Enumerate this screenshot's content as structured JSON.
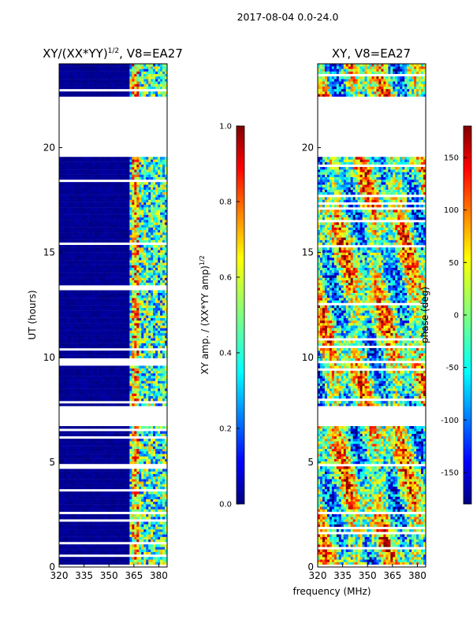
{
  "figure": {
    "suptitle": "2017-08-04 0.0-24.0",
    "xlabel_shared": "frequency (MHz)"
  },
  "chart_data": [
    {
      "type": "heatmap",
      "title": "XY/(XX*YY)",
      "title_exponent": "1/2",
      "title_suffix": ", V8=EA27",
      "xlabel": "frequency (MHz)",
      "ylabel": "UT (hours)",
      "xlim": [
        320,
        385
      ],
      "ylim": [
        0,
        24
      ],
      "xticks": [
        320,
        335,
        350,
        365,
        380
      ],
      "yticks": [
        0,
        5,
        10,
        15,
        20
      ],
      "colorbar": {
        "label": "XY amp. / (XX*YY amp)",
        "label_exponent": "1/2",
        "range": [
          0.0,
          1.0
        ],
        "ticks": [
          "0.0",
          "0.2",
          "0.4",
          "0.6",
          "0.8",
          "1.0"
        ]
      },
      "data_gaps_hours": [
        [
          6.7,
          7.6
        ],
        [
          19.5,
          22.4
        ]
      ],
      "description_values": {
        "low_freq_band_mean": 0.02,
        "high_freq_band_mean": 0.35
      }
    },
    {
      "type": "heatmap",
      "title": "XY, V8=EA27",
      "xlabel": "frequency (MHz)",
      "ylabel": "",
      "xlim": [
        320,
        385
      ],
      "ylim": [
        0,
        24
      ],
      "xticks": [
        320,
        335,
        350,
        365,
        380
      ],
      "yticks": [
        0,
        5,
        10,
        15,
        20
      ],
      "colorbar": {
        "label": "phase (deg)",
        "range": [
          -180,
          180
        ],
        "ticks": [
          "-150",
          "-100",
          "-50",
          "0",
          "50",
          "100",
          "150"
        ]
      },
      "data_gaps_hours": [
        [
          6.7,
          7.6
        ],
        [
          19.5,
          22.4
        ]
      ]
    }
  ],
  "colormap": {
    "name": "jet",
    "stops": [
      "#00007f",
      "#0000ff",
      "#007fff",
      "#00ffff",
      "#7fff7f",
      "#ffff00",
      "#ff7f00",
      "#ff0000",
      "#7f0000"
    ]
  }
}
